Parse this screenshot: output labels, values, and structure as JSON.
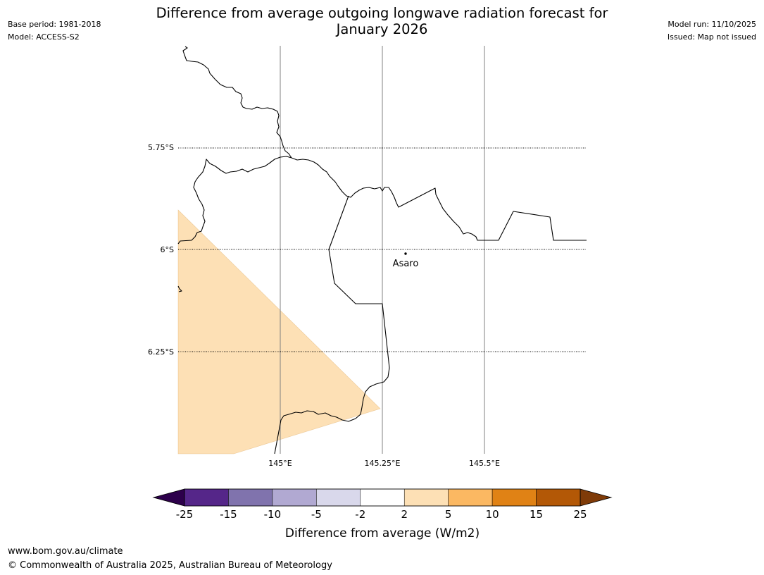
{
  "title_line1": "Difference from average outgoing longwave radiation forecast for",
  "title_line2": "January 2026",
  "meta_left": {
    "base_period": "Base period: 1981-2018",
    "model": "Model: ACCESS-S2"
  },
  "meta_right": {
    "model_run": "Model run: 11/10/2025",
    "issued": "Issued: Map not issued"
  },
  "map": {
    "lat_labels": [
      "5.75°S",
      "6°S",
      "6.25°S"
    ],
    "lon_labels": [
      "145°E",
      "145.25°E",
      "145.5°E"
    ],
    "place": {
      "name": "Asaro"
    },
    "shaded_category": "2 to 5"
  },
  "colorbar": {
    "label": "Difference from average (W/m2)",
    "ticks": [
      "-25",
      "-15",
      "-10",
      "-5",
      "-2",
      "2",
      "5",
      "10",
      "15",
      "25"
    ],
    "colors": [
      "#552689",
      "#8073ad",
      "#b1a9d2",
      "#d9d8eb",
      "#ffffff",
      "#fde0b5",
      "#fbb862",
      "#e08215",
      "#b35806"
    ],
    "low_extend_color": "#2d004b",
    "high_extend_color": "#7f3b08"
  },
  "footer": {
    "url": "www.bom.gov.au/climate",
    "copyright": "© Commonwealth of Australia 2025, Australian Bureau of Meteorology"
  }
}
